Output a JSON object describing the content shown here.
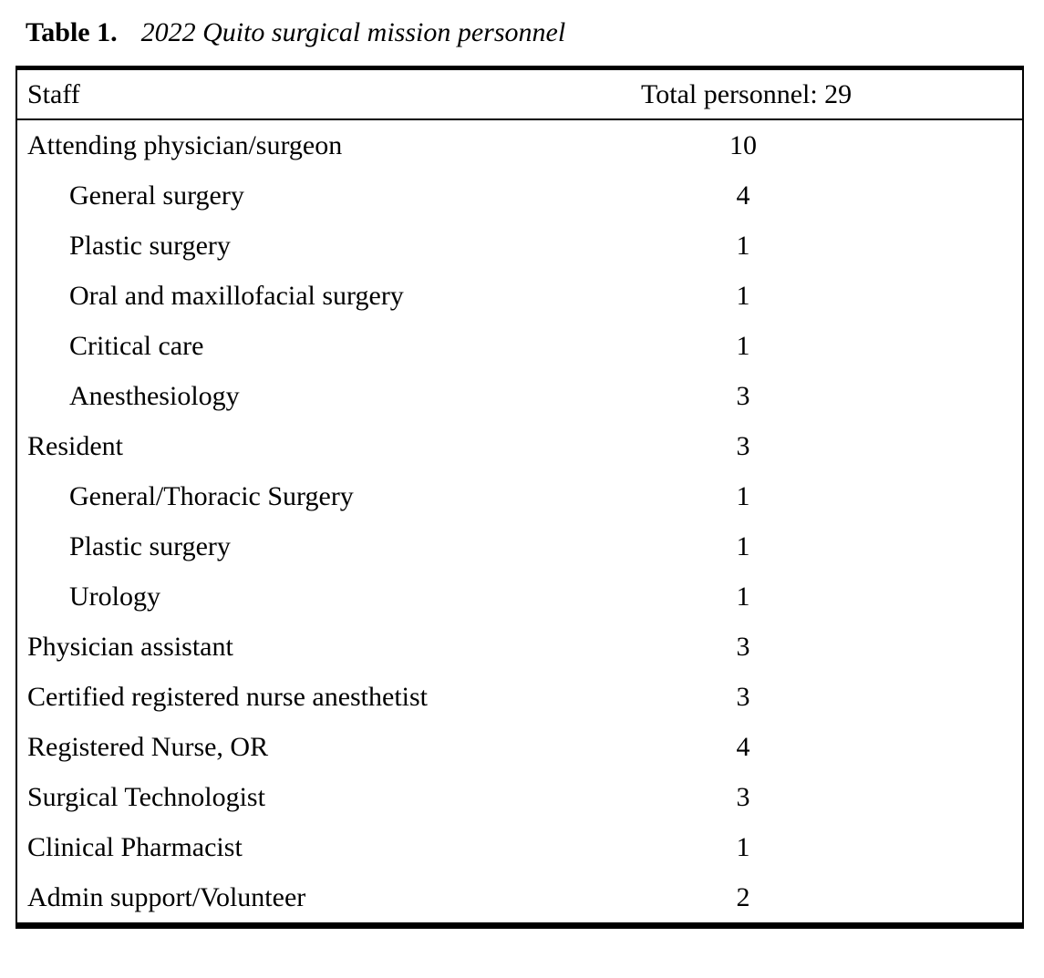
{
  "caption": {
    "label": "Table 1.",
    "title": "2022 Quito surgical mission personnel"
  },
  "table": {
    "header": {
      "staff": "Staff",
      "total": "Total personnel: 29"
    },
    "rows": [
      {
        "label": "Attending physician/surgeon",
        "value": "10",
        "indent": 0
      },
      {
        "label": "General surgery",
        "value": "4",
        "indent": 1
      },
      {
        "label": "Plastic surgery",
        "value": "1",
        "indent": 1
      },
      {
        "label": "Oral and maxillofacial surgery",
        "value": "1",
        "indent": 1
      },
      {
        "label": "Critical care",
        "value": "1",
        "indent": 1
      },
      {
        "label": "Anesthesiology",
        "value": "3",
        "indent": 1
      },
      {
        "label": "Resident",
        "value": "3",
        "indent": 0
      },
      {
        "label": "General/Thoracic Surgery",
        "value": "1",
        "indent": 1
      },
      {
        "label": "Plastic surgery",
        "value": "1",
        "indent": 1
      },
      {
        "label": "Urology",
        "value": "1",
        "indent": 1
      },
      {
        "label": "Physician assistant",
        "value": "3",
        "indent": 0
      },
      {
        "label": "Certified registered nurse anesthetist",
        "value": "3",
        "indent": 0
      },
      {
        "label": "Registered Nurse, OR",
        "value": "4",
        "indent": 0
      },
      {
        "label": "Surgical Technologist",
        "value": "3",
        "indent": 0
      },
      {
        "label": "Clinical Pharmacist",
        "value": "1",
        "indent": 0
      },
      {
        "label": "Admin support/Volunteer",
        "value": "2",
        "indent": 0
      }
    ]
  }
}
